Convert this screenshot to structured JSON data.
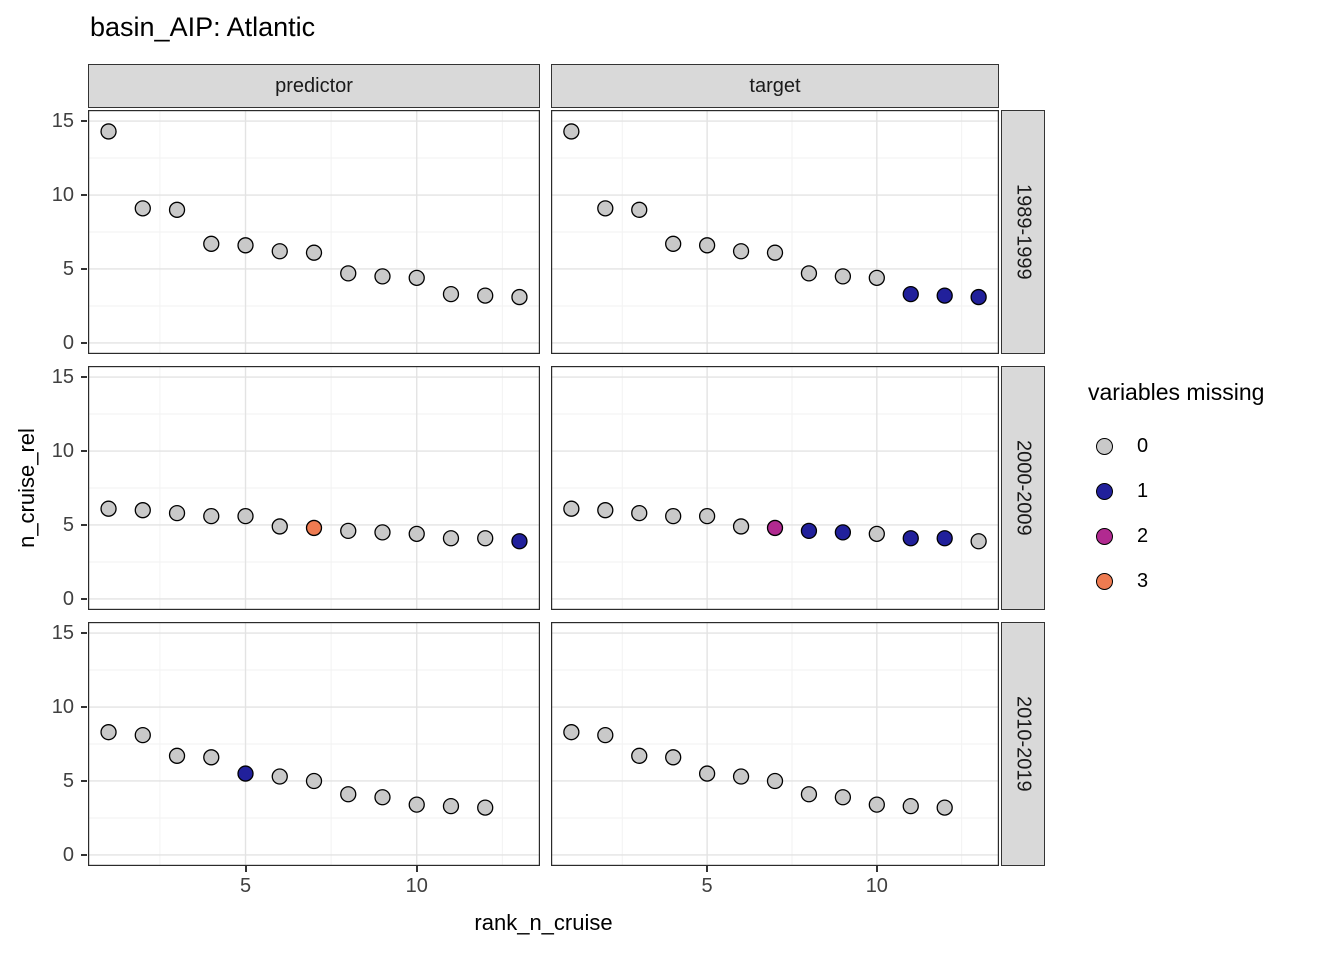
{
  "title": "basin_AIP: Atlantic",
  "legend": {
    "title": "variables missing",
    "entries": [
      {
        "label": "0",
        "color": "#C9C9C9"
      },
      {
        "label": "1",
        "color": "#21209B"
      },
      {
        "label": "2",
        "color": "#B12A90"
      },
      {
        "label": "3",
        "color": "#EE7B51"
      }
    ]
  },
  "chart_data": {
    "type": "scatter",
    "title": "basin_AIP: Atlantic",
    "xlabel": "rank_n_cruise",
    "ylabel": "n_cruise_rel",
    "facet_cols": [
      "predictor",
      "target"
    ],
    "facet_rows": [
      "1989-1999",
      "2000-2009",
      "2010-2019"
    ],
    "legend_title": "variables missing",
    "legend_position": "right",
    "grid": true,
    "x_ticks": [
      5,
      10
    ],
    "y_ticks": [
      0,
      5,
      10,
      15
    ],
    "x_minor": [
      2.5,
      7.5,
      12.5
    ],
    "y_minor": [
      2.5,
      7.5,
      12.5
    ],
    "xlim": [
      0.4,
      13.6
    ],
    "ylim": [
      -0.75,
      15.75
    ],
    "panels": [
      {
        "col": "predictor",
        "row": "1989-1999",
        "points": [
          {
            "x": 1,
            "y": 14.3,
            "m": 0
          },
          {
            "x": 2,
            "y": 9.1,
            "m": 0
          },
          {
            "x": 3,
            "y": 9.0,
            "m": 0
          },
          {
            "x": 4,
            "y": 6.7,
            "m": 0
          },
          {
            "x": 5,
            "y": 6.6,
            "m": 0
          },
          {
            "x": 6,
            "y": 6.2,
            "m": 0
          },
          {
            "x": 7,
            "y": 6.1,
            "m": 0
          },
          {
            "x": 8,
            "y": 4.7,
            "m": 0
          },
          {
            "x": 9,
            "y": 4.5,
            "m": 0
          },
          {
            "x": 10,
            "y": 4.4,
            "m": 0
          },
          {
            "x": 11,
            "y": 3.3,
            "m": 0
          },
          {
            "x": 12,
            "y": 3.2,
            "m": 0
          },
          {
            "x": 13,
            "y": 3.1,
            "m": 0
          }
        ]
      },
      {
        "col": "target",
        "row": "1989-1999",
        "points": [
          {
            "x": 1,
            "y": 14.3,
            "m": 0
          },
          {
            "x": 2,
            "y": 9.1,
            "m": 0
          },
          {
            "x": 3,
            "y": 9.0,
            "m": 0
          },
          {
            "x": 4,
            "y": 6.7,
            "m": 0
          },
          {
            "x": 5,
            "y": 6.6,
            "m": 0
          },
          {
            "x": 6,
            "y": 6.2,
            "m": 0
          },
          {
            "x": 7,
            "y": 6.1,
            "m": 0
          },
          {
            "x": 8,
            "y": 4.7,
            "m": 0
          },
          {
            "x": 9,
            "y": 4.5,
            "m": 0
          },
          {
            "x": 10,
            "y": 4.4,
            "m": 0
          },
          {
            "x": 11,
            "y": 3.3,
            "m": 1
          },
          {
            "x": 12,
            "y": 3.2,
            "m": 1
          },
          {
            "x": 13,
            "y": 3.1,
            "m": 1
          }
        ]
      },
      {
        "col": "predictor",
        "row": "2000-2009",
        "points": [
          {
            "x": 1,
            "y": 6.1,
            "m": 0
          },
          {
            "x": 2,
            "y": 6.0,
            "m": 0
          },
          {
            "x": 3,
            "y": 5.8,
            "m": 0
          },
          {
            "x": 4,
            "y": 5.6,
            "m": 0
          },
          {
            "x": 5,
            "y": 5.6,
            "m": 0
          },
          {
            "x": 6,
            "y": 4.9,
            "m": 0
          },
          {
            "x": 7,
            "y": 4.8,
            "m": 3
          },
          {
            "x": 8,
            "y": 4.6,
            "m": 0
          },
          {
            "x": 9,
            "y": 4.5,
            "m": 0
          },
          {
            "x": 10,
            "y": 4.4,
            "m": 0
          },
          {
            "x": 11,
            "y": 4.1,
            "m": 0
          },
          {
            "x": 12,
            "y": 4.1,
            "m": 0
          },
          {
            "x": 13,
            "y": 3.9,
            "m": 1
          }
        ]
      },
      {
        "col": "target",
        "row": "2000-2009",
        "points": [
          {
            "x": 1,
            "y": 6.1,
            "m": 0
          },
          {
            "x": 2,
            "y": 6.0,
            "m": 0
          },
          {
            "x": 3,
            "y": 5.8,
            "m": 0
          },
          {
            "x": 4,
            "y": 5.6,
            "m": 0
          },
          {
            "x": 5,
            "y": 5.6,
            "m": 0
          },
          {
            "x": 6,
            "y": 4.9,
            "m": 0
          },
          {
            "x": 7,
            "y": 4.8,
            "m": 2
          },
          {
            "x": 8,
            "y": 4.6,
            "m": 1
          },
          {
            "x": 9,
            "y": 4.5,
            "m": 1
          },
          {
            "x": 10,
            "y": 4.4,
            "m": 0
          },
          {
            "x": 11,
            "y": 4.1,
            "m": 1
          },
          {
            "x": 12,
            "y": 4.1,
            "m": 1
          },
          {
            "x": 13,
            "y": 3.9,
            "m": 0
          }
        ]
      },
      {
        "col": "predictor",
        "row": "2010-2019",
        "points": [
          {
            "x": 1,
            "y": 8.3,
            "m": 0
          },
          {
            "x": 2,
            "y": 8.1,
            "m": 0
          },
          {
            "x": 3,
            "y": 6.7,
            "m": 0
          },
          {
            "x": 4,
            "y": 6.6,
            "m": 0
          },
          {
            "x": 5,
            "y": 5.5,
            "m": 1
          },
          {
            "x": 6,
            "y": 5.3,
            "m": 0
          },
          {
            "x": 7,
            "y": 5.0,
            "m": 0
          },
          {
            "x": 8,
            "y": 4.1,
            "m": 0
          },
          {
            "x": 9,
            "y": 3.9,
            "m": 0
          },
          {
            "x": 10,
            "y": 3.4,
            "m": 0
          },
          {
            "x": 11,
            "y": 3.3,
            "m": 0
          },
          {
            "x": 12,
            "y": 3.2,
            "m": 0
          }
        ]
      },
      {
        "col": "target",
        "row": "2010-2019",
        "points": [
          {
            "x": 1,
            "y": 8.3,
            "m": 0
          },
          {
            "x": 2,
            "y": 8.1,
            "m": 0
          },
          {
            "x": 3,
            "y": 6.7,
            "m": 0
          },
          {
            "x": 4,
            "y": 6.6,
            "m": 0
          },
          {
            "x": 5,
            "y": 5.5,
            "m": 0
          },
          {
            "x": 6,
            "y": 5.3,
            "m": 0
          },
          {
            "x": 7,
            "y": 5.0,
            "m": 0
          },
          {
            "x": 8,
            "y": 4.1,
            "m": 0
          },
          {
            "x": 9,
            "y": 3.9,
            "m": 0
          },
          {
            "x": 10,
            "y": 3.4,
            "m": 0
          },
          {
            "x": 11,
            "y": 3.3,
            "m": 0
          },
          {
            "x": 12,
            "y": 3.2,
            "m": 0
          }
        ]
      }
    ]
  }
}
